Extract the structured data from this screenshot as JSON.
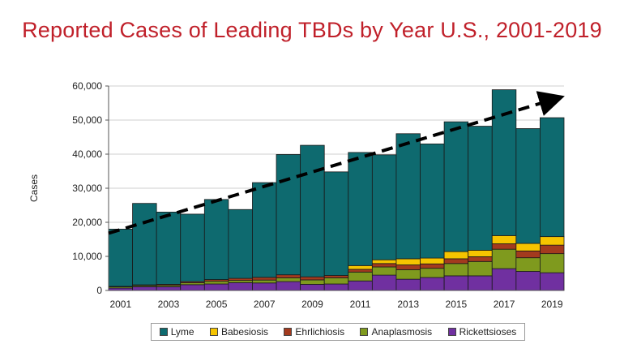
{
  "chart_data": {
    "type": "bar",
    "stacked": true,
    "title": "Reported Cases of Leading TBDs by Year U.S., 2001-2019",
    "xlabel": "",
    "ylabel": "Cases",
    "ylim": [
      0,
      60000
    ],
    "yticks": [
      0,
      10000,
      20000,
      30000,
      40000,
      50000,
      60000
    ],
    "ytick_labels": [
      "0",
      "10,000",
      "20,000",
      "30,000",
      "40,000",
      "50,000",
      "60,000"
    ],
    "categories": [
      "2001",
      "2002",
      "2003",
      "2004",
      "2005",
      "2006",
      "2007",
      "2008",
      "2009",
      "2010",
      "2011",
      "2012",
      "2013",
      "2014",
      "2015",
      "2016",
      "2017",
      "2018",
      "2019"
    ],
    "xtick_labels": [
      "2001",
      "2003",
      "2005",
      "2007",
      "2009",
      "2011",
      "2013",
      "2015",
      "2017",
      "2019"
    ],
    "series": [
      {
        "name": "Rickettsioses",
        "color": "#7030a0",
        "values": [
          700,
          1100,
          1100,
          1700,
          1900,
          2300,
          2200,
          2600,
          1800,
          1900,
          2800,
          4500,
          3300,
          3800,
          4300,
          4300,
          6400,
          5600,
          5200
        ]
      },
      {
        "name": "Anaplasmosis",
        "color": "#7f9a1e",
        "values": [
          350,
          350,
          400,
          550,
          800,
          650,
          850,
          1100,
          1300,
          1800,
          2600,
          2400,
          2800,
          2700,
          3600,
          4200,
          5700,
          4000,
          5600
        ]
      },
      {
        "name": "Ehrlichiosis",
        "color": "#a33a1e",
        "values": [
          150,
          200,
          300,
          350,
          500,
          600,
          800,
          900,
          900,
          700,
          800,
          1000,
          1400,
          1300,
          1400,
          1400,
          1600,
          2000,
          2500
        ]
      },
      {
        "name": "Babesiosis",
        "color": "#f5c400",
        "values": [
          0,
          0,
          0,
          0,
          0,
          0,
          0,
          0,
          0,
          0,
          1100,
          1100,
          1800,
          1700,
          2100,
          1900,
          2400,
          2200,
          2500
        ]
      },
      {
        "name": "Lyme",
        "color": "#0e6a6f",
        "values": [
          16800,
          23900,
          21200,
          19800,
          23500,
          20200,
          27800,
          35300,
          38600,
          30400,
          33200,
          30800,
          36700,
          33500,
          38100,
          36400,
          42800,
          33700,
          34900
        ]
      }
    ],
    "trend": {
      "style": "dashed-arrow",
      "from": {
        "x": "2001",
        "y": 16800
      },
      "to": {
        "x": "2019",
        "y": 56500
      }
    },
    "legend": {
      "position": "bottom",
      "order": [
        "Lyme",
        "Babesiosis",
        "Ehrlichiosis",
        "Anaplasmosis",
        "Rickettsioses"
      ]
    },
    "grid": true
  }
}
